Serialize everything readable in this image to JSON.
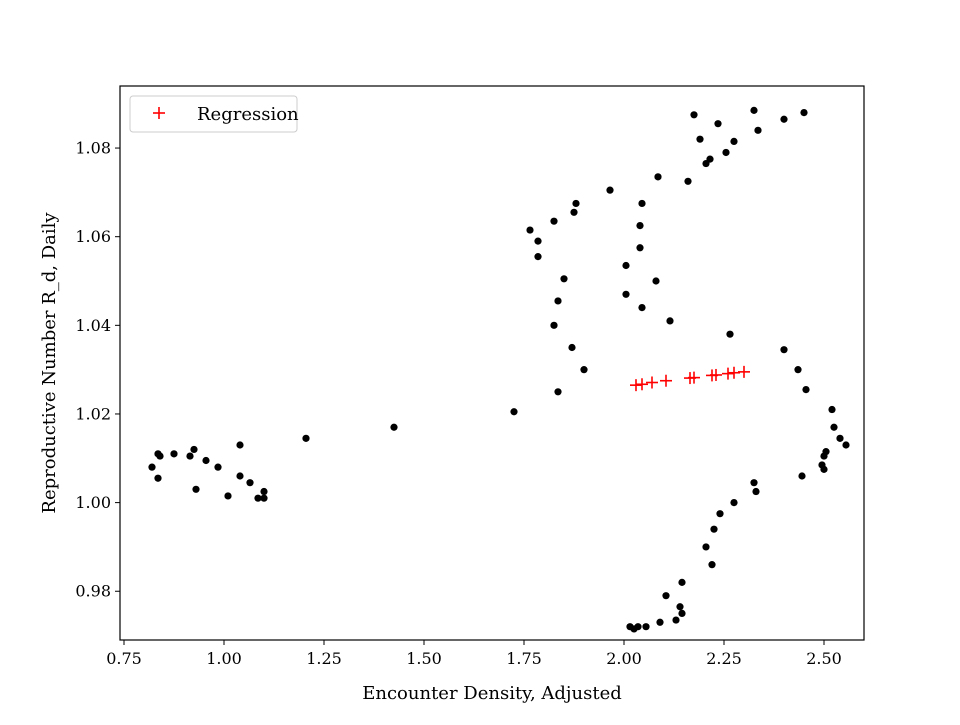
{
  "chart_data": {
    "type": "scatter",
    "title": "",
    "xlabel": "Encounter Density, Adjusted",
    "ylabel": "Reproductive Number R_d, Daily",
    "xlim": [
      0.74,
      2.6
    ],
    "ylim": [
      0.969,
      1.094
    ],
    "xticks": [
      0.75,
      1.0,
      1.25,
      1.5,
      1.75,
      2.0,
      2.25,
      2.5
    ],
    "xtick_labels": [
      "0.75",
      "1.00",
      "1.25",
      "1.50",
      "1.75",
      "2.00",
      "2.25",
      "2.50"
    ],
    "yticks": [
      0.98,
      1.0,
      1.02,
      1.04,
      1.06,
      1.08
    ],
    "ytick_labels": [
      "0.98",
      "1.00",
      "1.02",
      "1.04",
      "1.06",
      "1.08"
    ],
    "grid": false,
    "legend_position": "upper-left",
    "series": [
      {
        "name": "",
        "marker": "dot",
        "color": "#000000",
        "points": [
          [
            0.82,
            1.008
          ],
          [
            0.835,
            1.0055
          ],
          [
            0.835,
            1.011
          ],
          [
            0.84,
            1.0105
          ],
          [
            0.875,
            1.011
          ],
          [
            0.915,
            1.0105
          ],
          [
            0.925,
            1.012
          ],
          [
            0.93,
            1.003
          ],
          [
            0.955,
            1.0095
          ],
          [
            0.985,
            1.008
          ],
          [
            1.01,
            1.0015
          ],
          [
            1.04,
            1.013
          ],
          [
            1.04,
            1.006
          ],
          [
            1.065,
            1.0045
          ],
          [
            1.085,
            1.001
          ],
          [
            1.1,
            1.0025
          ],
          [
            1.1,
            1.001
          ],
          [
            1.205,
            1.0145
          ],
          [
            1.425,
            1.017
          ],
          [
            1.725,
            1.0205
          ],
          [
            1.765,
            1.0615
          ],
          [
            1.785,
            1.059
          ],
          [
            1.785,
            1.0555
          ],
          [
            1.825,
            1.0635
          ],
          [
            1.825,
            1.04
          ],
          [
            1.835,
            1.0455
          ],
          [
            1.835,
            1.025
          ],
          [
            1.85,
            1.0505
          ],
          [
            1.87,
            1.035
          ],
          [
            1.875,
            1.0655
          ],
          [
            1.88,
            1.0675
          ],
          [
            1.9,
            1.03
          ],
          [
            1.965,
            1.0705
          ],
          [
            2.005,
            1.0535
          ],
          [
            2.005,
            1.047
          ],
          [
            2.04,
            1.0625
          ],
          [
            2.04,
            1.0575
          ],
          [
            2.045,
            1.0675
          ],
          [
            2.045,
            1.044
          ],
          [
            2.08,
            1.05
          ],
          [
            2.085,
            1.0735
          ],
          [
            2.115,
            1.041
          ],
          [
            2.16,
            1.0725
          ],
          [
            2.175,
            1.0875
          ],
          [
            2.19,
            1.082
          ],
          [
            2.205,
            1.0765
          ],
          [
            2.215,
            1.0775
          ],
          [
            2.235,
            1.0855
          ],
          [
            2.255,
            1.079
          ],
          [
            2.275,
            1.0815
          ],
          [
            2.325,
            1.0885
          ],
          [
            2.335,
            1.084
          ],
          [
            2.4,
            1.0865
          ],
          [
            2.45,
            1.088
          ],
          [
            2.265,
            1.038
          ],
          [
            2.4,
            1.0345
          ],
          [
            2.435,
            1.03
          ],
          [
            2.455,
            1.0255
          ],
          [
            2.52,
            1.021
          ],
          [
            2.525,
            1.017
          ],
          [
            2.54,
            1.0145
          ],
          [
            2.555,
            1.013
          ],
          [
            2.505,
            1.0115
          ],
          [
            2.5,
            1.0105
          ],
          [
            2.495,
            1.0085
          ],
          [
            2.5,
            1.0075
          ],
          [
            2.445,
            1.006
          ],
          [
            2.325,
            1.0045
          ],
          [
            2.33,
            1.0025
          ],
          [
            2.275,
            1.0
          ],
          [
            2.24,
            0.9975
          ],
          [
            2.225,
            0.994
          ],
          [
            2.205,
            0.99
          ],
          [
            2.22,
            0.986
          ],
          [
            2.145,
            0.982
          ],
          [
            2.105,
            0.979
          ],
          [
            2.14,
            0.9765
          ],
          [
            2.145,
            0.975
          ],
          [
            2.13,
            0.9735
          ],
          [
            2.09,
            0.973
          ],
          [
            2.055,
            0.972
          ],
          [
            2.035,
            0.972
          ],
          [
            2.025,
            0.9715
          ],
          [
            2.015,
            0.972
          ]
        ]
      },
      {
        "name": "Regression",
        "marker": "plus",
        "color": "#ff0000",
        "points": [
          [
            2.03,
            1.0265
          ],
          [
            2.045,
            1.0267
          ],
          [
            2.07,
            1.0271
          ],
          [
            2.105,
            1.0275
          ],
          [
            2.165,
            1.0281
          ],
          [
            2.175,
            1.0282
          ],
          [
            2.22,
            1.0287
          ],
          [
            2.23,
            1.0288
          ],
          [
            2.26,
            1.0291
          ],
          [
            2.275,
            1.0293
          ],
          [
            2.3,
            1.0295
          ]
        ]
      }
    ]
  }
}
